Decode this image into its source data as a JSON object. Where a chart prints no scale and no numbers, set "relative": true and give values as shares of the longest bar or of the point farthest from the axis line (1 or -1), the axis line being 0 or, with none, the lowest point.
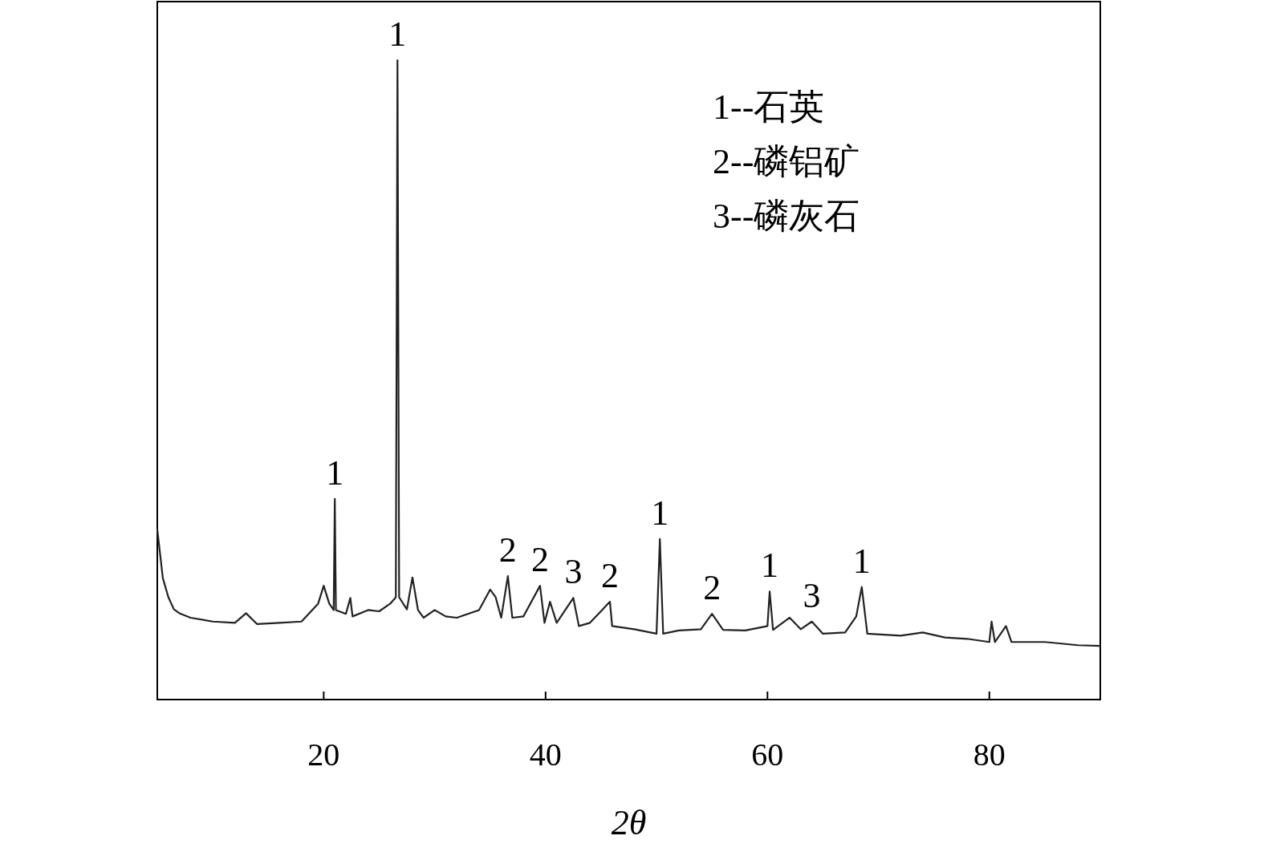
{
  "chart_data": {
    "type": "line",
    "relative": true,
    "xlabel": "2θ",
    "xlim": [
      5,
      90
    ],
    "xticks": [
      20,
      40,
      60,
      80
    ],
    "series": [
      {
        "color": "#222222",
        "x": [
          5,
          5.5,
          6,
          6.5,
          7,
          8,
          10,
          12,
          13,
          14,
          16,
          18,
          19.5,
          20,
          20.5,
          20.9,
          21,
          21.1,
          22,
          22.4,
          22.6,
          24,
          25,
          26,
          26.5,
          26.65,
          26.8,
          27.5,
          28,
          28.5,
          29,
          30,
          31,
          32,
          34,
          35,
          35.5,
          36,
          36.6,
          37,
          38,
          39.5,
          39.9,
          40.4,
          41,
          42.5,
          43,
          44,
          45.8,
          46,
          48,
          50,
          50.3,
          50.6,
          52,
          54,
          55,
          56,
          58,
          60,
          60.2,
          60.5,
          62,
          63,
          64,
          65,
          67,
          68,
          68.5,
          69,
          72,
          74,
          76,
          78,
          80,
          80.2,
          80.5,
          81.5,
          82,
          85,
          88,
          90
        ],
        "values": [
          0.266,
          0.19,
          0.16,
          0.141,
          0.135,
          0.128,
          0.122,
          0.12,
          0.135,
          0.118,
          0.12,
          0.122,
          0.15,
          0.178,
          0.15,
          0.14,
          0.314,
          0.14,
          0.134,
          0.159,
          0.13,
          0.14,
          0.138,
          0.15,
          0.16,
          1,
          0.16,
          0.141,
          0.191,
          0.14,
          0.128,
          0.14,
          0.13,
          0.128,
          0.14,
          0.172,
          0.16,
          0.128,
          0.193,
          0.128,
          0.13,
          0.178,
          0.12,
          0.153,
          0.12,
          0.159,
          0.115,
          0.12,
          0.153,
          0.115,
          0.11,
          0.103,
          0.251,
          0.103,
          0.108,
          0.11,
          0.134,
          0.109,
          0.108,
          0.115,
          0.169,
          0.109,
          0.128,
          0.11,
          0.122,
          0.103,
          0.105,
          0.13,
          0.176,
          0.103,
          0.1,
          0.105,
          0.097,
          0.095,
          0.09,
          0.122,
          0.09,
          0.115,
          0.09,
          0.09,
          0.085,
          0.084
        ]
      }
    ],
    "annotations": [
      {
        "text": "1",
        "x": 21,
        "y": 0.314
      },
      {
        "text": "1",
        "x": 26.65,
        "y": 1
      },
      {
        "text": "2",
        "x": 36.6,
        "y": 0.193
      },
      {
        "text": "2",
        "x": 39.5,
        "y": 0.178
      },
      {
        "text": "3",
        "x": 42.5,
        "y": 0.159
      },
      {
        "text": "2",
        "x": 45.8,
        "y": 0.153
      },
      {
        "text": "1",
        "x": 50.3,
        "y": 0.251
      },
      {
        "text": "2",
        "x": 55,
        "y": 0.134
      },
      {
        "text": "1",
        "x": 60.2,
        "y": 0.169
      },
      {
        "text": "3",
        "x": 64,
        "y": 0.122
      },
      {
        "text": "1",
        "x": 68.5,
        "y": 0.176
      },
      "1--石英",
      "2--磷铝矿",
      "3--磷灰石"
    ]
  }
}
